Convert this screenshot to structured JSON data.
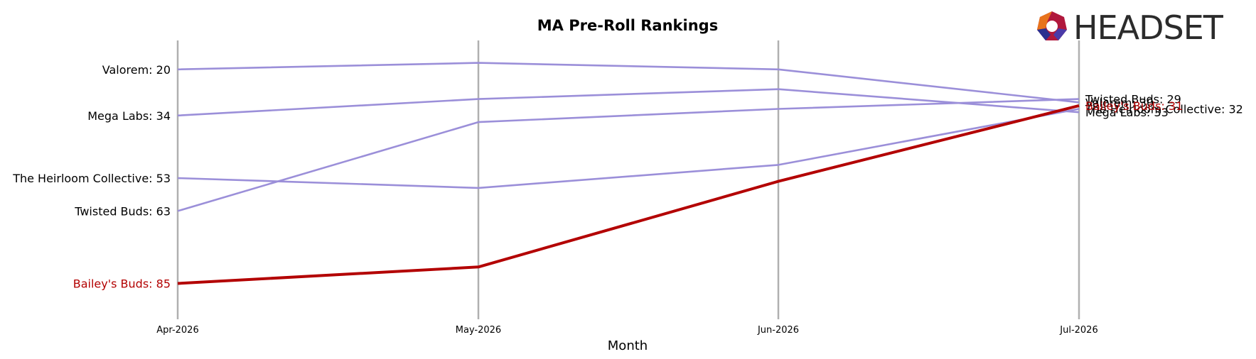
{
  "chart_data": {
    "type": "line",
    "title": "MA Pre-Roll Rankings",
    "xlabel": "Month",
    "ylabel": "",
    "categories": [
      "Apr-2026",
      "May-2026",
      "Jun-2026",
      "Jul-2026"
    ],
    "y_inverted": true,
    "ylim": [
      14,
      92
    ],
    "highlight_series": "Bailey's Buds",
    "series": [
      {
        "name": "Valorem",
        "values": [
          20,
          18,
          20,
          30
        ],
        "color": "#9b8fd9",
        "highlight": false
      },
      {
        "name": "Mega Labs",
        "values": [
          34,
          29,
          26,
          33
        ],
        "color": "#9b8fd9",
        "highlight": false
      },
      {
        "name": "The Heirloom Collective",
        "values": [
          53,
          56,
          49,
          32
        ],
        "color": "#9b8fd9",
        "highlight": false
      },
      {
        "name": "Twisted Buds",
        "values": [
          63,
          36,
          32,
          29
        ],
        "color": "#9b8fd9",
        "highlight": false
      },
      {
        "name": "Bailey's Buds",
        "values": [
          85,
          80,
          54,
          31
        ],
        "color": "#b30000",
        "highlight": true
      }
    ],
    "left_labels": [
      "Valorem: 20",
      "Mega Labs: 34",
      "The Heirloom Collective: 53",
      "Twisted Buds: 63",
      "Bailey's Buds: 85"
    ],
    "right_labels": [
      "Valorem: 30",
      "Mega Labs: 33",
      "The Heirloom Collective: 32",
      "Twisted Buds: 29",
      "Bailey's Buds: 31"
    ],
    "grid": "vertical lines at each month"
  },
  "brand": {
    "logo_text": "HEADSET"
  },
  "colors": {
    "other_series": "#9b8fd9",
    "highlight": "#b30000",
    "axis_lines": "#b0b0b0"
  }
}
